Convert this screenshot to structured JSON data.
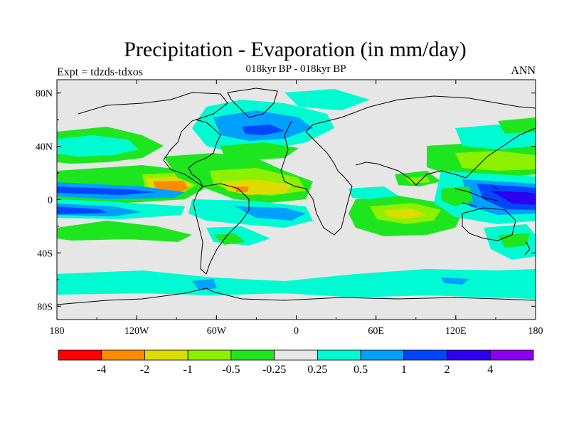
{
  "chart_data": {
    "type": "heatmap",
    "title": "Precipitation - Evaporation (in mm/day)",
    "subtitle": "018kyr BP - 018kyr BP",
    "left_label": "Expt = tdzds-tdxos",
    "right_label": "ANN",
    "x_ticks": [
      "180",
      "120W",
      "60W",
      "0",
      "60E",
      "120E",
      "180"
    ],
    "x_range": [
      -180,
      180
    ],
    "y_ticks": [
      "80N",
      "40N",
      "0",
      "40S",
      "80S"
    ],
    "y_range": [
      -90,
      90
    ],
    "colorbar": {
      "colors": [
        "#ff0000",
        "#ff8c00",
        "#dcdc00",
        "#8cf000",
        "#1ee61e",
        "#e6e6e6",
        "#00fad2",
        "#00a0ff",
        "#0046ff",
        "#2d00f0",
        "#8c00f0"
      ],
      "labels": [
        "-4",
        "-2",
        "-1",
        "-0.5",
        "-0.25",
        "0.25",
        "0.5",
        "1",
        "2",
        "4"
      ]
    },
    "colors": {
      "background": "#e6e6e6",
      "coast": "#000000"
    }
  }
}
